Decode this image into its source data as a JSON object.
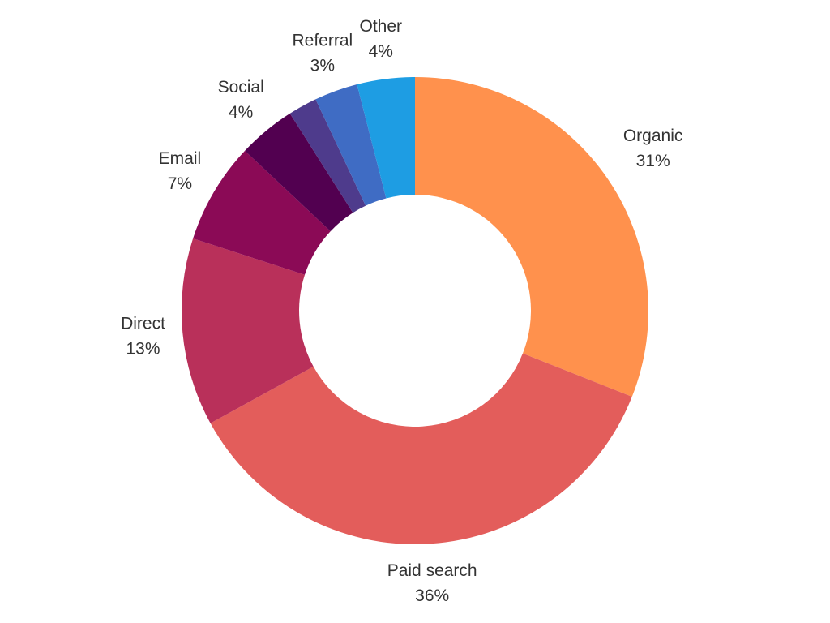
{
  "chart_data": {
    "type": "donut",
    "categories": [
      "Organic",
      "Paid search",
      "Direct",
      "Email",
      "Social",
      null,
      "Referral",
      "Other"
    ],
    "values": [
      31,
      36,
      13,
      7,
      4,
      2,
      3,
      4
    ],
    "value_labels": [
      "31%",
      "36%",
      "13%",
      "7%",
      "4%",
      null,
      "3%",
      "4%"
    ],
    "colors": [
      "#ff914d",
      "#e35d5b",
      "#b9305a",
      "#8b0a56",
      "#520050",
      "#4e3b8c",
      "#3f6cc4",
      "#1e9de3"
    ]
  }
}
